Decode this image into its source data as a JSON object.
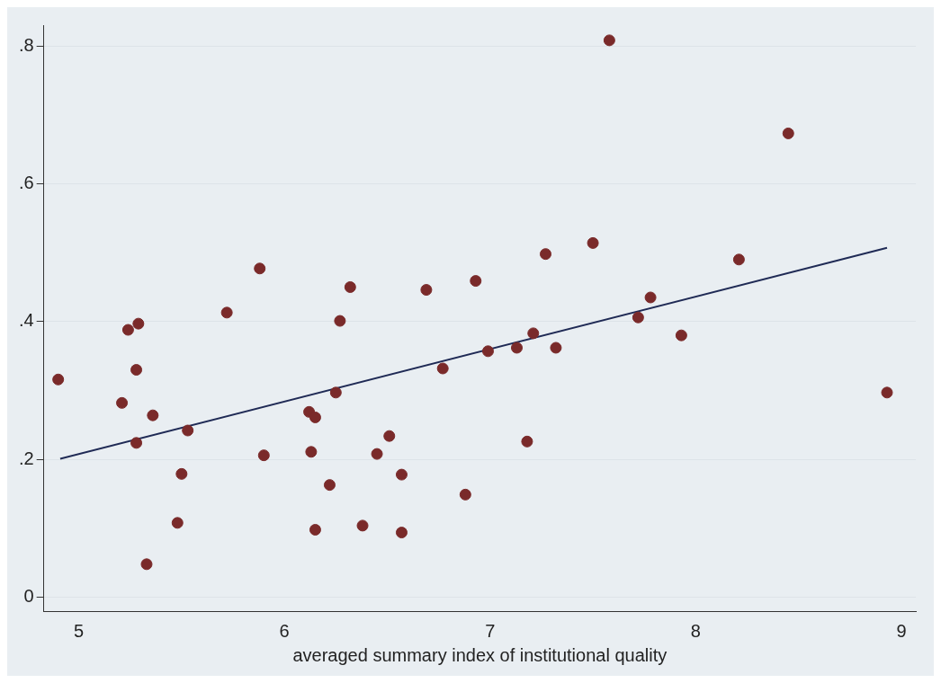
{
  "chart_data": {
    "type": "scatter",
    "xlabel": "averaged summary index of institutional quality",
    "xlim": [
      4.83,
      9.07
    ],
    "ylim": [
      -0.02,
      0.83
    ],
    "xticks": [
      5,
      6,
      7,
      8,
      9
    ],
    "yticks": [
      {
        "value": 0,
        "label": "0"
      },
      {
        "value": 0.2,
        "label": ".2"
      },
      {
        "value": 0.4,
        "label": ".4"
      },
      {
        "value": 0.6,
        "label": ".6"
      },
      {
        "value": 0.8,
        "label": ".8"
      }
    ],
    "grid": "y",
    "legend": false,
    "marker": "circle",
    "series": [
      {
        "type": "scatter",
        "color": "#7a2a2a",
        "x": [
          4.9,
          5.21,
          5.24,
          5.29,
          5.28,
          5.36,
          5.28,
          5.53,
          5.5,
          5.48,
          5.33,
          5.72,
          5.88,
          5.9,
          6.12,
          6.15,
          6.13,
          6.15,
          6.22,
          6.25,
          6.32,
          6.27,
          6.38,
          6.45,
          6.51,
          6.57,
          6.57,
          6.69,
          6.77,
          6.88,
          6.93,
          6.99,
          7.13,
          7.18,
          7.21,
          7.27,
          7.32,
          7.5,
          7.58,
          7.72,
          7.78,
          7.93,
          8.21,
          8.45,
          8.93
        ],
        "values": [
          0.316,
          0.282,
          0.388,
          0.397,
          0.33,
          0.264,
          0.224,
          0.242,
          0.179,
          0.108,
          0.048,
          0.413,
          0.477,
          0.206,
          0.269,
          0.261,
          0.211,
          0.098,
          0.163,
          0.297,
          0.45,
          0.401,
          0.104,
          0.208,
          0.234,
          0.178,
          0.094,
          0.446,
          0.332,
          0.149,
          0.459,
          0.357,
          0.362,
          0.226,
          0.383,
          0.498,
          0.362,
          0.514,
          0.808,
          0.406,
          0.435,
          0.38,
          0.49,
          0.673,
          0.297
        ]
      },
      {
        "type": "line",
        "color": "#1f2a55",
        "marker": "none",
        "x": [
          4.91,
          8.93
        ],
        "values": [
          0.201,
          0.507
        ]
      }
    ]
  }
}
